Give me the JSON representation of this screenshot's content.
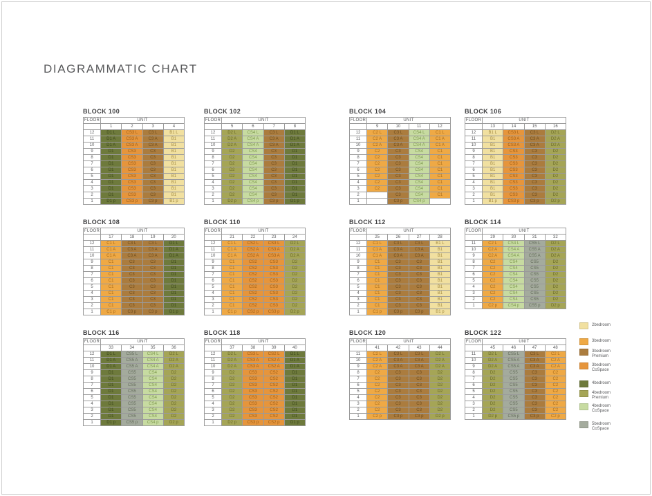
{
  "page": {
    "title": "DIAGRAMMATIC CHART"
  },
  "labels": {
    "floor": "FLOOR",
    "unit": "UNIT"
  },
  "type_colors": {
    "2bedroom": {
      "bg": "#F1E0A0",
      "text": "#A38B42"
    },
    "3bedroom": {
      "bg": "#EFA945",
      "text": "#A86C1B"
    },
    "3bedroom-premium": {
      "bg": "#AB7C3E",
      "text": "#6E4D1D"
    },
    "3bedroom-cospace": {
      "bg": "#E6953C",
      "text": "#9E5F15"
    },
    "4bedroom": {
      "bg": "#6E7A3C",
      "text": "#3C471C"
    },
    "4bedroom-premium": {
      "bg": "#A5A556",
      "text": "#696928"
    },
    "4bedroom-cospace": {
      "bg": "#C7DBA1",
      "text": "#7F9A4E"
    },
    "5bedroom-cospace": {
      "bg": "#A4AB9D",
      "text": "#656D5C"
    }
  },
  "legend": {
    "items": [
      {
        "type": "2bedroom",
        "label_lines": [
          "2bedroom"
        ]
      },
      {
        "type": "3bedroom",
        "label_lines": [
          "3bedroom"
        ]
      },
      {
        "type": "3bedroom-premium",
        "label_lines": [
          "3bedroom",
          "Premium"
        ]
      },
      {
        "type": "3bedroom-cospace",
        "label_lines": [
          "3bedroom",
          "CoSpace"
        ]
      },
      {
        "type": "4bedroom",
        "label_lines": [
          "4bedroom"
        ]
      },
      {
        "type": "4bedroom-premium",
        "label_lines": [
          "4bedroom",
          "Premium"
        ]
      },
      {
        "type": "4bedroom-cospace",
        "label_lines": [
          "4bedroom",
          "CoSpace"
        ]
      },
      {
        "type": "5bedroom-cospace",
        "label_lines": [
          "5bedroom",
          "CoSpace"
        ]
      }
    ]
  },
  "blocks": [
    {
      "title": "BLOCK 100",
      "units": [
        "1",
        "2",
        "3",
        "4"
      ],
      "types": [
        "4bedroom",
        "3bedroom-cospace",
        "3bedroom-premium",
        "2bedroom"
      ],
      "floors": [
        "12",
        "11",
        "10",
        "9",
        "8",
        "7",
        "6",
        "5",
        "4",
        "3",
        "2",
        "1"
      ],
      "rows": [
        [
          "D1 L",
          "CS3 L",
          "C3 L",
          "B1 L"
        ],
        [
          "D1 A",
          "CS3 A",
          "C3 A",
          "B1"
        ],
        [
          "D1 A",
          "CS3 A",
          "C3 A",
          "B1"
        ],
        [
          "D1",
          "CS3",
          "C3",
          "B1"
        ],
        [
          "D1",
          "CS3",
          "C3",
          "B1"
        ],
        [
          "D1",
          "CS3",
          "C3",
          "B1"
        ],
        [
          "D1",
          "CS3",
          "C3",
          "B1"
        ],
        [
          "D1",
          "CS3",
          "C3",
          "B1"
        ],
        [
          "D1",
          "CS3",
          "C3",
          "B1"
        ],
        [
          "D1",
          "CS3",
          "C3",
          "B1"
        ],
        [
          "D1",
          "CS3",
          "C3",
          "B1"
        ],
        [
          "D1 p",
          "CS3 p",
          "C3 p",
          "B1 p"
        ]
      ]
    },
    {
      "title": "BLOCK 102",
      "units": [
        "5",
        "6",
        "7",
        "8"
      ],
      "types": [
        "4bedroom-premium",
        "4bedroom-cospace",
        "3bedroom-premium",
        "4bedroom"
      ],
      "floors": [
        "12",
        "11",
        "10",
        "9",
        "8",
        "7",
        "6",
        "5",
        "4",
        "3",
        "2",
        "1"
      ],
      "rows": [
        [
          "D2 L",
          "CS4 L",
          "C3 L",
          "D1 L"
        ],
        [
          "D2 A",
          "CS4 A",
          "C3 A",
          "D1 A"
        ],
        [
          "D2 A",
          "CS4 A",
          "C3 A",
          "D1 A"
        ],
        [
          "D2",
          "CS4",
          "C3",
          "D1"
        ],
        [
          "D2",
          "CS4",
          "C3",
          "D1"
        ],
        [
          "D2",
          "CS4",
          "C3",
          "D1"
        ],
        [
          "D2",
          "CS4",
          "C3",
          "D1"
        ],
        [
          "D2",
          "CS4",
          "C3",
          "D1"
        ],
        [
          "D2",
          "CS4",
          "C3",
          "D1"
        ],
        [
          "D2",
          "CS4",
          "C3",
          "D1"
        ],
        [
          "D2",
          "CS4",
          "C3",
          "D1"
        ],
        [
          "D2 p",
          "CS4 p",
          "C3 p",
          "D1 p"
        ]
      ]
    },
    {
      "title": "BLOCK 104",
      "units": [
        "9",
        "10",
        "11",
        "12"
      ],
      "types": [
        "3bedroom",
        "3bedroom-premium",
        "4bedroom-cospace",
        "3bedroom"
      ],
      "floors": [
        "12",
        "11",
        "10",
        "9",
        "8",
        "7",
        "6",
        "5",
        "4",
        "3",
        "2",
        "1"
      ],
      "rows": [
        [
          "C2 L",
          "C3 L",
          "CS4 L",
          "C1 L"
        ],
        [
          "C2 A",
          "C3 A",
          "CS4 A",
          "C1 A"
        ],
        [
          "C2 A",
          "C3 A",
          "CS4 A",
          "C1 A"
        ],
        [
          "C2",
          "C3",
          "CS4",
          "C1"
        ],
        [
          "C2",
          "C3",
          "CS4",
          "C1"
        ],
        [
          "C2",
          "C3",
          "CS4",
          "C1"
        ],
        [
          "C2",
          "C3",
          "CS4",
          "C1"
        ],
        [
          "C2",
          "C3",
          "CS4",
          "C1"
        ],
        [
          "C2",
          "C3",
          "CS4",
          "C1"
        ],
        [
          "C2",
          "C3",
          "CS4",
          "C1"
        ],
        [
          "",
          "C3",
          "CS4",
          "C1"
        ],
        [
          "",
          "C3 p",
          "CS4 p",
          ""
        ]
      ]
    },
    {
      "title": "BLOCK 106",
      "units": [
        "13",
        "14",
        "15",
        "16"
      ],
      "types": [
        "2bedroom",
        "3bedroom-cospace",
        "3bedroom-premium",
        "4bedroom-premium"
      ],
      "floors": [
        "12",
        "11",
        "10",
        "9",
        "8",
        "7",
        "6",
        "5",
        "4",
        "3",
        "2",
        "1"
      ],
      "rows": [
        [
          "B1 L",
          "CS3 L",
          "C3 L",
          "D2 L"
        ],
        [
          "B1",
          "CS3 A",
          "C3 A",
          "D2 A"
        ],
        [
          "B1",
          "CS3 A",
          "C3 A",
          "D2 A"
        ],
        [
          "B1",
          "CS3",
          "C3",
          "D2"
        ],
        [
          "B1",
          "CS3",
          "C3",
          "D2"
        ],
        [
          "B1",
          "CS3",
          "C3",
          "D2"
        ],
        [
          "B1",
          "CS3",
          "C3",
          "D2"
        ],
        [
          "B1",
          "CS3",
          "C3",
          "D2"
        ],
        [
          "B1",
          "CS3",
          "C3",
          "D2"
        ],
        [
          "B1",
          "CS3",
          "C3",
          "D2"
        ],
        [
          "B1",
          "CS3",
          "C3",
          "D2"
        ],
        [
          "B1 p",
          "CS3 p",
          "C3 p",
          "D2 p"
        ]
      ]
    },
    {
      "title": "BLOCK 108",
      "units": [
        "17",
        "18",
        "19",
        "20"
      ],
      "types": [
        "3bedroom",
        "3bedroom-premium",
        "3bedroom-premium",
        "4bedroom"
      ],
      "floors": [
        "12",
        "11",
        "10",
        "9",
        "8",
        "7",
        "6",
        "5",
        "4",
        "3",
        "2",
        "1"
      ],
      "rows": [
        [
          "C1 L",
          "C3 L",
          "C3 L",
          "D1 L"
        ],
        [
          "C1 A",
          "C3 A",
          "C3 A",
          "D1 A"
        ],
        [
          "C1 A",
          "C3 A",
          "C3 A",
          "D1 A"
        ],
        [
          "C1",
          "C3",
          "C3",
          "D1"
        ],
        [
          "C1",
          "C3",
          "C3",
          "D1"
        ],
        [
          "C1",
          "C3",
          "C3",
          "D1"
        ],
        [
          "C1",
          "C3",
          "C3",
          "D1"
        ],
        [
          "C1",
          "C3",
          "C3",
          "D1"
        ],
        [
          "C1",
          "C3",
          "C3",
          "D1"
        ],
        [
          "C1",
          "C3",
          "C3",
          "D1"
        ],
        [
          "C1",
          "C3",
          "C3",
          "D1"
        ],
        [
          "C1 p",
          "C3 p",
          "C3 p",
          "D1 p"
        ]
      ]
    },
    {
      "title": "BLOCK 110",
      "units": [
        "21",
        "22",
        "23",
        "24"
      ],
      "types": [
        "3bedroom",
        "3bedroom-cospace",
        "3bedroom-cospace",
        "4bedroom-premium"
      ],
      "floors": [
        "12",
        "11",
        "10",
        "9",
        "8",
        "7",
        "6",
        "5",
        "4",
        "3",
        "2",
        "1"
      ],
      "rows": [
        [
          "C1 L",
          "CS2 L",
          "CS3 L",
          "D2 L"
        ],
        [
          "C1 A",
          "CS2 A",
          "CS3 A",
          "D2 A"
        ],
        [
          "C1 A",
          "CS2 A",
          "CS3 A",
          "D2 A"
        ],
        [
          "C1",
          "CS2",
          "CS3",
          "D2"
        ],
        [
          "C1",
          "CS2",
          "CS3",
          "D2"
        ],
        [
          "C1",
          "CS2",
          "CS3",
          "D2"
        ],
        [
          "C1",
          "CS2",
          "CS3",
          "D2"
        ],
        [
          "C1",
          "CS2",
          "CS3",
          "D2"
        ],
        [
          "C1",
          "CS2",
          "CS3",
          "D2"
        ],
        [
          "C1",
          "CS2",
          "CS3",
          "D2"
        ],
        [
          "C1",
          "CS2",
          "CS3",
          "D2"
        ],
        [
          "C1 p",
          "CS2 p",
          "CS3 p",
          "D2 p"
        ]
      ]
    },
    {
      "title": "BLOCK 112",
      "units": [
        "25",
        "26",
        "27",
        "28"
      ],
      "types": [
        "3bedroom",
        "3bedroom-premium",
        "3bedroom-premium",
        "2bedroom"
      ],
      "floors": [
        "12",
        "11",
        "10",
        "9",
        "8",
        "7",
        "6",
        "5",
        "4",
        "3",
        "2",
        "1"
      ],
      "rows": [
        [
          "C1 L",
          "C3 L",
          "C3 L",
          "B1 L"
        ],
        [
          "C1 A",
          "C3 A",
          "C3 A",
          "B1"
        ],
        [
          "C1 A",
          "C3 A",
          "C3 A",
          "B1"
        ],
        [
          "C1",
          "C3",
          "C3",
          "B1"
        ],
        [
          "C1",
          "C3",
          "C3",
          "B1"
        ],
        [
          "C1",
          "C3",
          "C3",
          "B1"
        ],
        [
          "C1",
          "C3",
          "C3",
          "B1"
        ],
        [
          "C1",
          "C3",
          "C3",
          "B1"
        ],
        [
          "C1",
          "C3",
          "C3",
          "B1"
        ],
        [
          "C1",
          "C3",
          "C3",
          "B1"
        ],
        [
          "C1",
          "C3",
          "C3",
          "B1"
        ],
        [
          "C1 p",
          "C3 p",
          "C3 p",
          "B1 p"
        ]
      ]
    },
    {
      "title": "BLOCK 114",
      "units": [
        "29",
        "30",
        "31",
        "32"
      ],
      "types": [
        "3bedroom",
        "4bedroom-cospace",
        "5bedroom-cospace",
        "4bedroom-premium"
      ],
      "floors": [
        "11",
        "10",
        "9",
        "8",
        "7",
        "6",
        "5",
        "4",
        "3",
        "2",
        "1"
      ],
      "rows": [
        [
          "C2 L",
          "CS4 L",
          "CS5 L",
          "D2 L"
        ],
        [
          "C2 A",
          "CS4 A",
          "CS5 A",
          "D2 A"
        ],
        [
          "C2 A",
          "CS4 A",
          "CS5 A",
          "D2 A"
        ],
        [
          "C2",
          "CS4",
          "CS5",
          "D2"
        ],
        [
          "C2",
          "CS4",
          "CS5",
          "D2"
        ],
        [
          "C2",
          "CS4",
          "CS5",
          "D2"
        ],
        [
          "C2",
          "CS4",
          "CS5",
          "D2"
        ],
        [
          "C2",
          "CS4",
          "CS5",
          "D2"
        ],
        [
          "C2",
          "CS4",
          "CS5",
          "D2"
        ],
        [
          "C2",
          "CS4",
          "CS5",
          "D2"
        ],
        [
          "C2 p",
          "CS4 p",
          "CS5 p",
          "D2 p"
        ]
      ]
    },
    {
      "title": "BLOCK 116",
      "units": [
        "33",
        "34",
        "35",
        "36"
      ],
      "types": [
        "4bedroom",
        "5bedroom-cospace",
        "4bedroom-cospace",
        "4bedroom-premium"
      ],
      "floors": [
        "12",
        "11",
        "10",
        "9",
        "8",
        "7",
        "6",
        "5",
        "4",
        "3",
        "2",
        "1"
      ],
      "rows": [
        [
          "D1 L",
          "CS5 L",
          "CS4 L",
          "D2 L"
        ],
        [
          "D1 A",
          "CS5 A",
          "CS4 A",
          "D2 A"
        ],
        [
          "D1 A",
          "CS5 A",
          "CS4 A",
          "D2 A"
        ],
        [
          "D1",
          "CS5",
          "CS4",
          "D2"
        ],
        [
          "D1",
          "CS5",
          "CS4",
          "D2"
        ],
        [
          "D1",
          "CS5",
          "CS4",
          "D2"
        ],
        [
          "D1",
          "CS5",
          "CS4",
          "D2"
        ],
        [
          "D1",
          "CS5",
          "CS4",
          "D2"
        ],
        [
          "D1",
          "CS5",
          "CS4",
          "D2"
        ],
        [
          "D1",
          "CS5",
          "CS4",
          "D2"
        ],
        [
          "D1",
          "CS5",
          "CS4",
          "D2"
        ],
        [
          "D1 p",
          "CS5 p",
          "CS4 p",
          "D2 p"
        ]
      ]
    },
    {
      "title": "BLOCK 118",
      "units": [
        "37",
        "38",
        "39",
        "40"
      ],
      "types": [
        "4bedroom-premium",
        "3bedroom-cospace",
        "3bedroom-cospace",
        "4bedroom"
      ],
      "floors": [
        "12",
        "11",
        "10",
        "9",
        "8",
        "7",
        "6",
        "5",
        "4",
        "3",
        "2",
        "1"
      ],
      "rows": [
        [
          "D2 L",
          "CS3 L",
          "CS2 L",
          "D1 L"
        ],
        [
          "D2 A",
          "CS3 A",
          "CS2 A",
          "D1 A"
        ],
        [
          "D2 A",
          "CS3 A",
          "CS2 A",
          "D1 A"
        ],
        [
          "D2",
          "CS3",
          "CS2",
          "D1"
        ],
        [
          "D2",
          "CS3",
          "CS2",
          "D1"
        ],
        [
          "D2",
          "CS3",
          "CS2",
          "D1"
        ],
        [
          "D2",
          "CS3",
          "CS2",
          "D1"
        ],
        [
          "D2",
          "CS3",
          "CS2",
          "D1"
        ],
        [
          "D2",
          "CS3",
          "CS2",
          "D1"
        ],
        [
          "D2",
          "CS3",
          "CS2",
          "D1"
        ],
        [
          "D2",
          "CS3",
          "CS2",
          "D1"
        ],
        [
          "D2 p",
          "CS3 p",
          "CS2 p",
          "D1 p"
        ]
      ]
    },
    {
      "title": "BLOCK 120",
      "units": [
        "41",
        "42",
        "43",
        "44"
      ],
      "types": [
        "3bedroom",
        "3bedroom-premium",
        "3bedroom-premium",
        "4bedroom-premium"
      ],
      "floors": [
        "11",
        "10",
        "9",
        "8",
        "7",
        "6",
        "5",
        "4",
        "3",
        "2",
        "1"
      ],
      "rows": [
        [
          "C2 L",
          "C3 L",
          "C3 L",
          "D2 L"
        ],
        [
          "C2 A",
          "C3 A",
          "C3 A",
          "D2 A"
        ],
        [
          "C2 A",
          "C3 A",
          "C3 A",
          "D2 A"
        ],
        [
          "C2",
          "C3",
          "C3",
          "D2"
        ],
        [
          "C2",
          "C3",
          "C3",
          "D2"
        ],
        [
          "C2",
          "C3",
          "C3",
          "D2"
        ],
        [
          "C2",
          "C3",
          "C3",
          "D2"
        ],
        [
          "C2",
          "C3",
          "C3",
          "D2"
        ],
        [
          "C2",
          "C3",
          "C3",
          "D2"
        ],
        [
          "C2",
          "C3",
          "C3",
          "D2"
        ],
        [
          "C2 p",
          "C3 p",
          "C3 p",
          "D2 p"
        ]
      ]
    },
    {
      "title": "BLOCK 122",
      "units": [
        "45",
        "46",
        "47",
        "48"
      ],
      "types": [
        "4bedroom-premium",
        "5bedroom-cospace",
        "3bedroom-premium",
        "3bedroom"
      ],
      "floors": [
        "11",
        "10",
        "9",
        "8",
        "7",
        "6",
        "5",
        "4",
        "3",
        "2",
        "1"
      ],
      "rows": [
        [
          "D2 L",
          "CS5 L",
          "C3 L",
          "C2 L"
        ],
        [
          "D2 A",
          "CS5 A",
          "C3 A",
          "C2 A"
        ],
        [
          "D2 A",
          "CS5 A",
          "C3 A",
          "C2 A"
        ],
        [
          "D2",
          "CS5",
          "C3",
          "C2"
        ],
        [
          "D2",
          "CS5",
          "C3",
          "C2"
        ],
        [
          "D2",
          "CS5",
          "C3",
          "C2"
        ],
        [
          "D2",
          "CS5",
          "C3",
          "C2"
        ],
        [
          "D2",
          "CS5",
          "C3",
          "C2"
        ],
        [
          "D2",
          "CS5",
          "C3",
          "C2"
        ],
        [
          "D2",
          "CS5",
          "C3",
          "C2"
        ],
        [
          "D2 p",
          "CS5 p",
          "C3 p",
          "C2 p"
        ]
      ]
    }
  ]
}
